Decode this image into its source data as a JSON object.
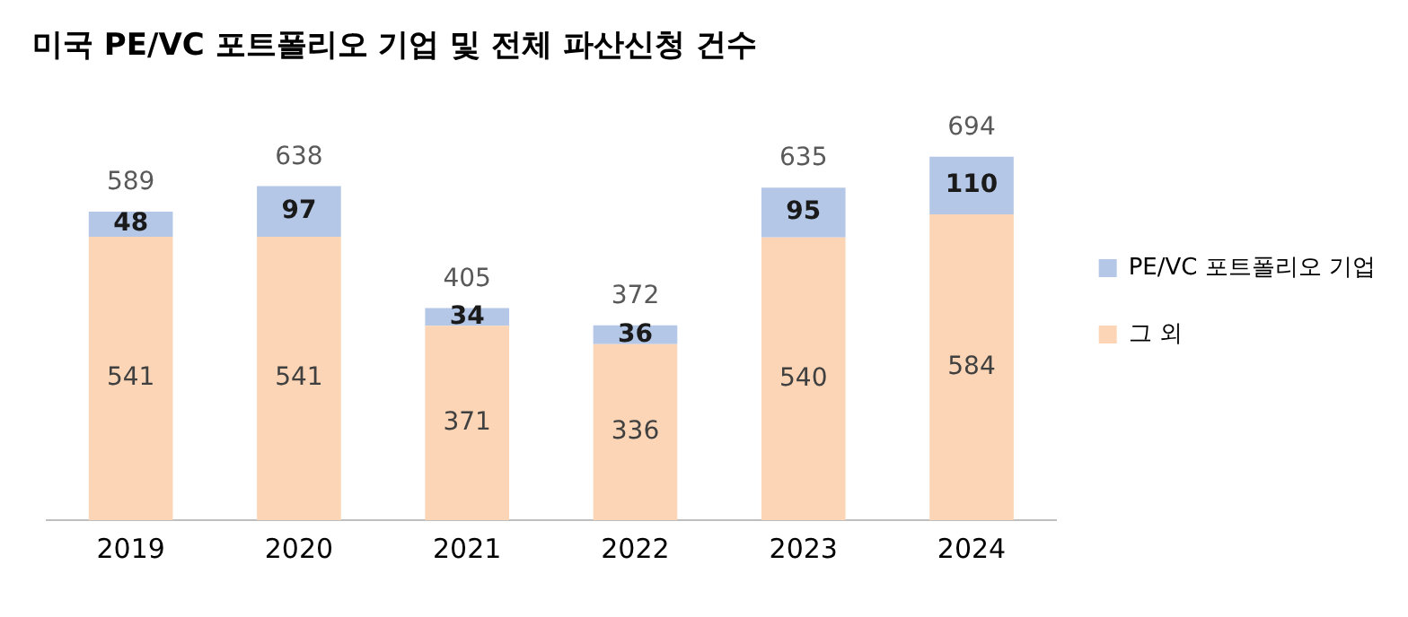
{
  "chart_data": {
    "type": "bar",
    "title": "미국 PE/VC 포트폴리오 기업 및 전체 파산신청 건수",
    "categories": [
      "2019",
      "2020",
      "2021",
      "2022",
      "2023",
      "2024"
    ],
    "stacked": true,
    "relative": false,
    "data_labels": true,
    "legend": "right",
    "grid": false,
    "series": [
      {
        "name": "그 외",
        "color": "#fbd5b5",
        "values": [
          541,
          541,
          371,
          336,
          540,
          584
        ]
      },
      {
        "name": "PE/VC 포트폴리오 기업",
        "color": "#b4c7e7",
        "values": [
          48,
          97,
          34,
          36,
          95,
          110
        ]
      }
    ],
    "totals": [
      "589",
      "638",
      "405",
      "372",
      "635",
      "694"
    ]
  }
}
